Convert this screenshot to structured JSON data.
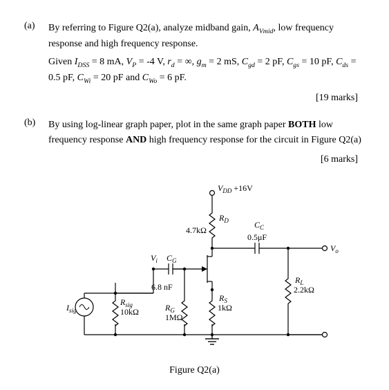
{
  "a": {
    "label": "(a)",
    "line1_pre": "By referring to Figure Q2(a), analyze midband gain, ",
    "line1_sym": "A",
    "line1_sub": "Vmid",
    "line1_post": ", low frequency response and high frequency response.",
    "line2": "Given ",
    "given_html_parts": [
      {
        "t": "i",
        "v": "I"
      },
      {
        "t": "sub",
        "v": "DSS"
      },
      {
        "t": "",
        "v": " = 8 mA, "
      },
      {
        "t": "i",
        "v": "V"
      },
      {
        "t": "sub",
        "v": "P"
      },
      {
        "t": "",
        "v": " = -4 V, "
      },
      {
        "t": "i",
        "v": "r"
      },
      {
        "t": "sub",
        "v": "d"
      },
      {
        "t": "",
        "v": " = ∞, "
      },
      {
        "t": "i",
        "v": "g"
      },
      {
        "t": "sub",
        "v": "m"
      },
      {
        "t": "",
        "v": " = 2 mS, "
      },
      {
        "t": "i",
        "v": "C"
      },
      {
        "t": "sub",
        "v": "gd"
      },
      {
        "t": "",
        "v": " = 2 pF, "
      },
      {
        "t": "i",
        "v": "C"
      },
      {
        "t": "sub",
        "v": "gs"
      },
      {
        "t": "",
        "v": " = 10 pF, "
      },
      {
        "t": "i",
        "v": "C"
      },
      {
        "t": "sub",
        "v": "ds"
      },
      {
        "t": "",
        "v": " = 0.5 pF, "
      },
      {
        "t": "i",
        "v": "C"
      },
      {
        "t": "sub",
        "v": "Wi"
      },
      {
        "t": "",
        "v": " = 20 pF and "
      },
      {
        "t": "i",
        "v": "C"
      },
      {
        "t": "sub",
        "v": "Wo"
      },
      {
        "t": "",
        "v": " = 6 pF."
      }
    ],
    "marks": "[19 marks]"
  },
  "b": {
    "label": "(b)",
    "text_pre": "By using log-linear graph paper, plot in the same graph paper ",
    "bold1": "BOTH",
    "text_mid": " low frequency response ",
    "bold2": "AND",
    "text_post": " high frequency response for the circuit in Figure Q2(a)",
    "marks": "[6 marks]"
  },
  "fig": {
    "vdd": "V",
    "vdd_sub": "DD",
    "vdd_val": " +16V",
    "rd": "R",
    "rd_sub": "D",
    "rd_val": "4.7kΩ",
    "cc": "C",
    "cc_sub": "C",
    "cc_val": "0.5μF",
    "vo": "V",
    "vo_sub": "o",
    "vi": "V",
    "vi_sub": "i",
    "cg": "C",
    "cg_sub": "G",
    "cg_val": "6.8 nF",
    "isig": "I",
    "isig_sub": "sig",
    "rsig": "R",
    "rsig_sub": "sig",
    "rsig_val": "10kΩ",
    "rg": "R",
    "rg_sub": "G",
    "rg_val": "1MΩ",
    "rs": "R",
    "rs_sub": "S",
    "rs_val": "1kΩ",
    "rl": "R",
    "rl_sub": "L",
    "rl_val": "2.2kΩ",
    "caption": "Figure Q2(a)"
  },
  "style": {
    "stroke": "#000000",
    "stroke_width": 1.2,
    "font_size_label": 12,
    "font_size_small": 9
  }
}
